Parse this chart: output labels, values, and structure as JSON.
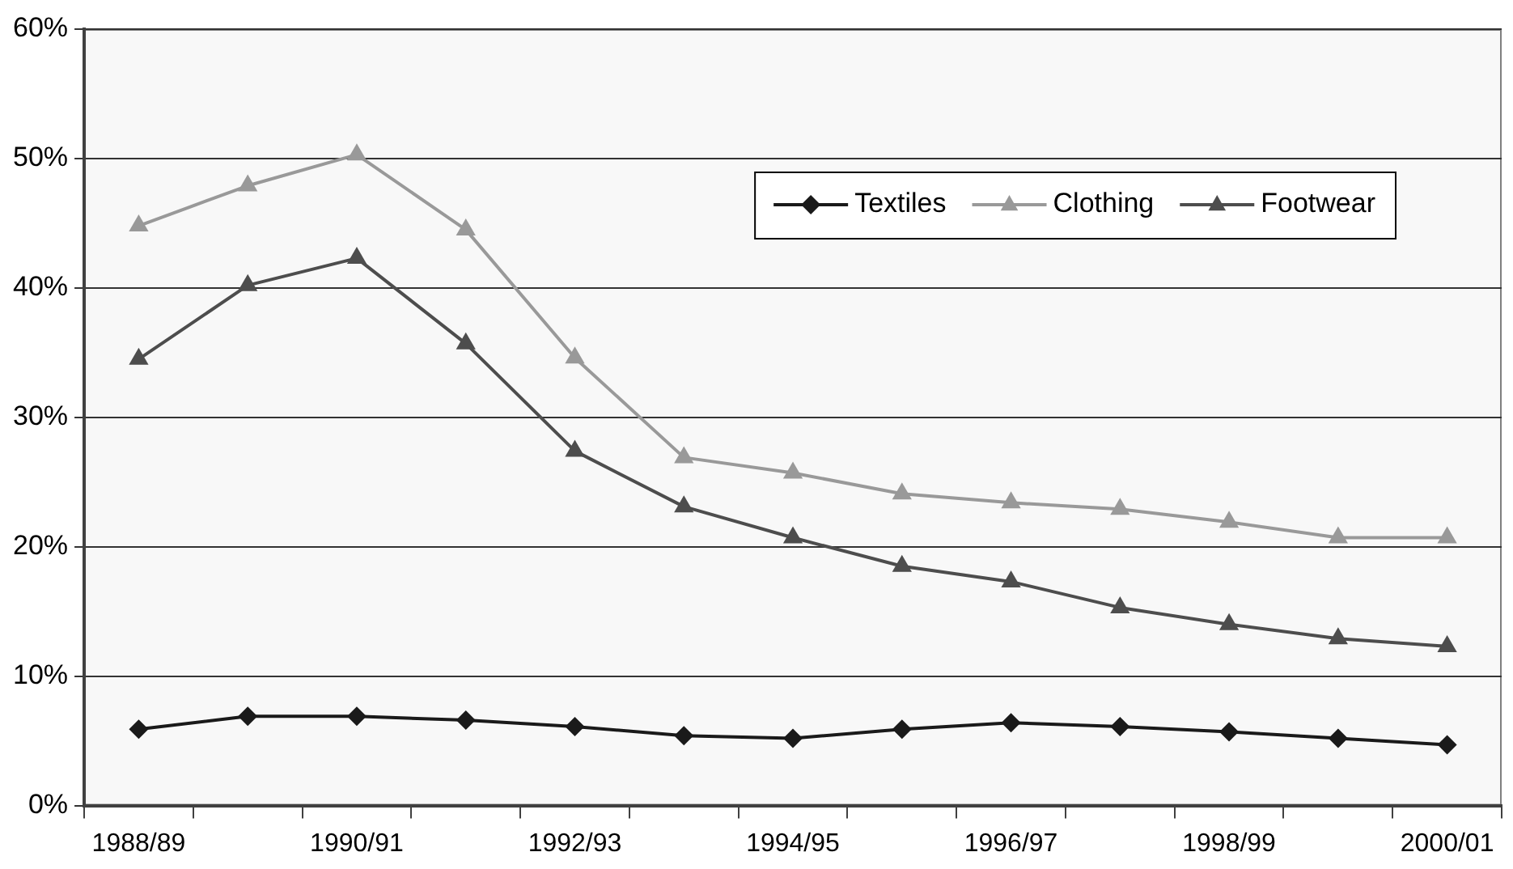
{
  "chart_data": {
    "type": "line",
    "categories": [
      "1988/89",
      null,
      "1990/91",
      null,
      "1992/93",
      null,
      "1994/95",
      null,
      "1996/97",
      null,
      "1998/99",
      null,
      "2000/01"
    ],
    "series": [
      {
        "name": "Textiles",
        "color": "#1a1a1a",
        "marker": "diamond",
        "values": [
          5.9,
          6.9,
          6.9,
          6.6,
          6.1,
          5.4,
          5.2,
          5.9,
          6.4,
          6.1,
          5.7,
          5.2,
          4.7
        ]
      },
      {
        "name": "Clothing",
        "color": "#999999",
        "marker": "triangle",
        "values": [
          44.8,
          47.9,
          50.3,
          44.5,
          34.6,
          26.9,
          25.7,
          24.1,
          23.4,
          22.9,
          21.9,
          20.7,
          20.7
        ]
      },
      {
        "name": "Footwear",
        "color": "#4d4d4d",
        "marker": "triangle",
        "values": [
          34.5,
          40.2,
          42.3,
          35.7,
          27.4,
          23.1,
          20.7,
          18.5,
          17.3,
          15.3,
          14.0,
          12.9,
          12.3
        ]
      }
    ],
    "ylim": [
      0,
      60
    ],
    "yticks": [
      {
        "value": 0,
        "label": "0%"
      },
      {
        "value": 10,
        "label": "10%"
      },
      {
        "value": 20,
        "label": "20%"
      },
      {
        "value": 30,
        "label": "30%"
      },
      {
        "value": 40,
        "label": "40%"
      },
      {
        "value": 50,
        "label": "50%"
      },
      {
        "value": 60,
        "label": "60%"
      }
    ],
    "grid": "y",
    "legend": "top right"
  }
}
